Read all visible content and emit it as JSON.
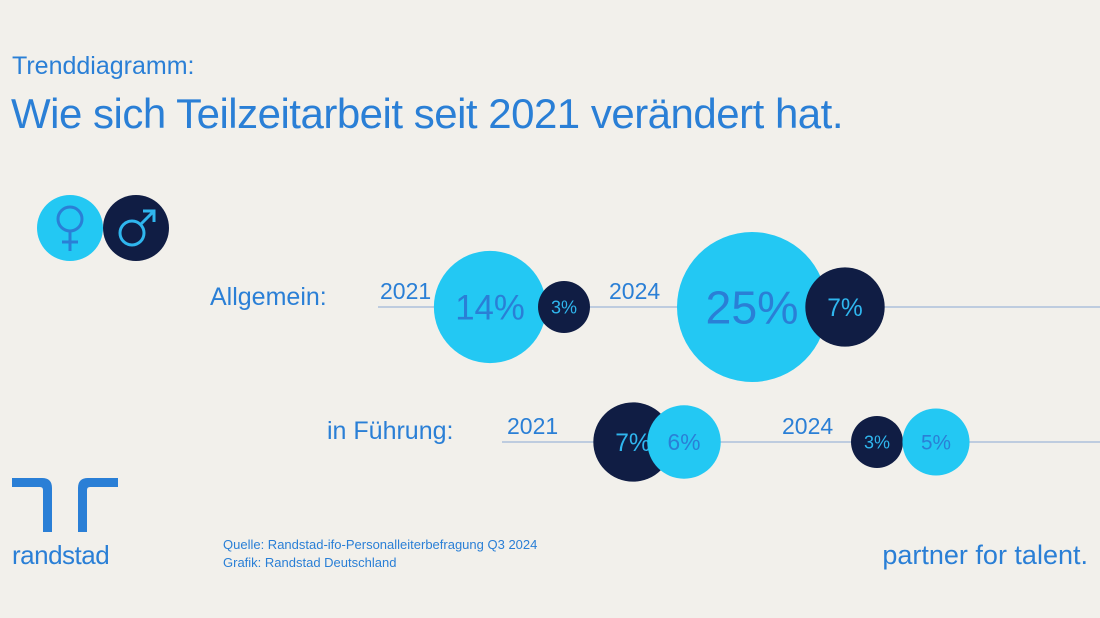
{
  "header": {
    "subtitle": "Trenddiagramm:",
    "title": "Wie sich Teilzeitarbeit seit 2021 verändert hat."
  },
  "legend": [
    {
      "icon": "female-symbol-icon",
      "color": "#23c8f3"
    },
    {
      "icon": "male-symbol-icon",
      "color": "#101d44"
    }
  ],
  "colors": {
    "female": "#23c8f3",
    "male": "#101d44",
    "female_text": "#2a7fd6",
    "male_text": "#2fb6ee",
    "line": "#9fb7d8"
  },
  "chart_data": {
    "type": "bubble",
    "title": "Wie sich Teilzeitarbeit seit 2021 verändert hat.",
    "unit": "%",
    "groups": [
      {
        "label": "Allgemein:",
        "periods": [
          {
            "year": "2021",
            "female": 14,
            "male": 3
          },
          {
            "year": "2024",
            "female": 25,
            "male": 7
          }
        ]
      },
      {
        "label": "in Führung:",
        "periods": [
          {
            "year": "2021",
            "female": 6,
            "male": 7
          },
          {
            "year": "2024",
            "female": 5,
            "male": 3
          }
        ]
      }
    ]
  },
  "footer": {
    "source": "Quelle: Randstad-ifo-Personalleiterbefragung Q3 2024",
    "credit": "Grafik: Randstad Deutschland",
    "brand": "randstad",
    "tagline": "partner for talent."
  }
}
